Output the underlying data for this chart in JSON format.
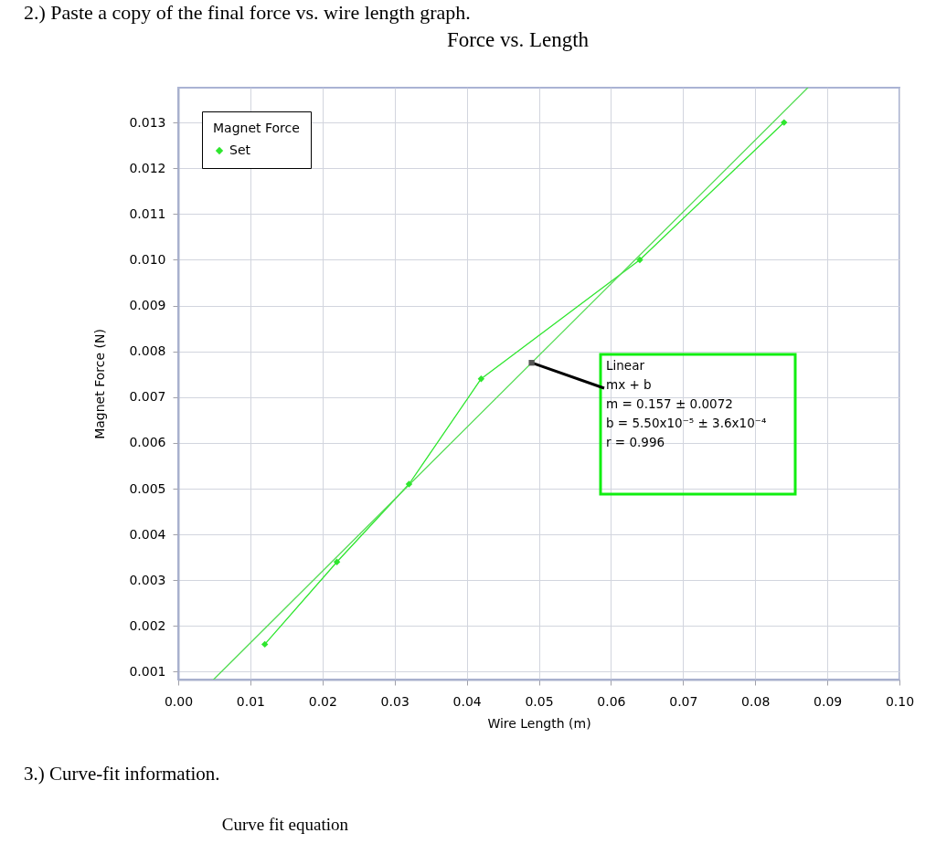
{
  "chart_data": {
    "type": "line",
    "title": "Force vs. Length",
    "xlabel": "Wire Length (m)",
    "ylabel": "Magnet Force (N)",
    "legend_title": "Magnet Force",
    "x": [
      0.012,
      0.022,
      0.032,
      0.042,
      0.064,
      0.084
    ],
    "series": [
      {
        "name": "Set",
        "color": "#2ee62e",
        "values": [
          0.0016,
          0.0034,
          0.0051,
          0.0074,
          0.01,
          0.013
        ]
      },
      {
        "type": "line",
        "color": "#55dd55",
        "x": [
          0.0049,
          0.0873
        ],
        "values": [
          0.00083,
          0.01376
        ],
        "marker": "none"
      }
    ],
    "xlim": [
      0,
      0.1
    ],
    "xticks": [
      {
        "value": 0,
        "label": "0.00"
      },
      0.01,
      0.02,
      0.03,
      0.04,
      0.05,
      0.06,
      0.07,
      0.08,
      0.09,
      {
        "value": 0.1,
        "label": "0.10"
      }
    ],
    "ylim": [
      0.00083,
      0.01376
    ],
    "yticks": [
      0.001,
      0.002,
      0.003,
      0.004,
      0.005,
      0.006,
      0.007,
      0.008,
      0.009,
      {
        "value": 0.01,
        "label": "0.010"
      },
      0.011,
      0.012,
      0.013
    ],
    "grid": true,
    "legend": "top left",
    "marker": "diamond",
    "line_style": "solid",
    "annotations": [
      "2.) Paste a copy of the final force vs. wire length graph.",
      {
        "text": "Linear\nmx + b\nm = 0.157 ± 0.0072\nb = 5.50x10⁻⁵ ± 3.6x10⁻⁴\n\nr = 0.996",
        "x": 0.049,
        "y": 0.00775
      },
      "3.) Curve-fit information.",
      "Curve fit equation"
    ]
  }
}
